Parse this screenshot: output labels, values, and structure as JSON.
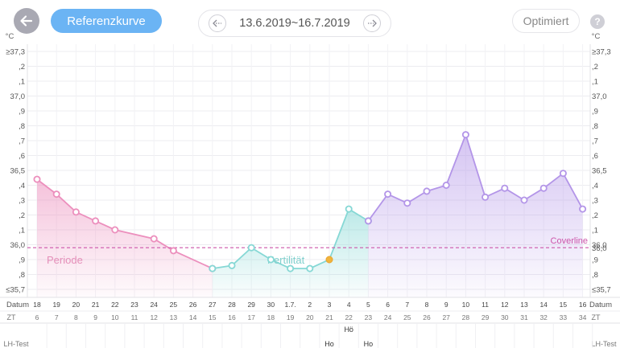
{
  "header": {
    "back_icon": "arrow-left-icon",
    "reference_button": "Referenzkurve",
    "date_range": "13.6.2019~16.7.2019",
    "prev_icon": "chevron-left-icon",
    "next_icon": "chevron-right-icon",
    "optimize_button": "Optimiert",
    "help_label": "?"
  },
  "chart_data": {
    "type": "line",
    "unit": "°C",
    "y_tick_labels": [
      "≥37,3",
      ",2",
      ",1",
      "37,0",
      ",9",
      ",8",
      ",7",
      ",6",
      "36,5",
      ",4",
      ",3",
      ",2",
      ",1",
      "36,0",
      ",9",
      ",8",
      "≤35,7"
    ],
    "ylim": [
      35.7,
      37.3
    ],
    "date_row_label": "Datum",
    "dates": [
      "18",
      "19",
      "20",
      "21",
      "22",
      "23",
      "24",
      "25",
      "26",
      "27",
      "28",
      "29",
      "30",
      "1.7.",
      "2",
      "3",
      "4",
      "5",
      "6",
      "7",
      "8",
      "9",
      "10",
      "11",
      "12",
      "13",
      "14",
      "15",
      "16"
    ],
    "cycle_row_label": "ZT",
    "cycle_days": [
      "6",
      "7",
      "8",
      "9",
      "10",
      "11",
      "12",
      "13",
      "14",
      "15",
      "16",
      "17",
      "18",
      "19",
      "20",
      "21",
      "22",
      "23",
      "24",
      "25",
      "26",
      "27",
      "28",
      "29",
      "30",
      "31",
      "32",
      "33",
      "34"
    ],
    "lh_row_label": "LH-Test",
    "lh_marks": [
      {
        "index": 15,
        "text": "Ho"
      },
      {
        "index": 16,
        "text": "Hö"
      },
      {
        "index": 17,
        "text": "Ho"
      }
    ],
    "temperatures": [
      36.44,
      36.34,
      36.22,
      36.16,
      36.1,
      null,
      36.04,
      35.96,
      null,
      35.84,
      35.86,
      35.98,
      35.9,
      35.84,
      35.84,
      35.9,
      36.24,
      36.16,
      36.34,
      36.28,
      36.36,
      36.4,
      36.74,
      36.32,
      36.38,
      36.3,
      36.38,
      36.48,
      36.24
    ],
    "ovulation_index": 15,
    "phases": [
      {
        "name": "Periode",
        "color": "#ec8fbd",
        "start": 0,
        "end": 9
      },
      {
        "name": "Fertilität",
        "color": "#86d8d5",
        "start": 9,
        "end": 17
      },
      {
        "name": "",
        "color": "#b395e8",
        "start": 17,
        "end": 28
      }
    ],
    "coverline": {
      "label": "Coverline",
      "value": 35.98,
      "right_label": "36,0"
    },
    "colors": {
      "periode": "#ec8fbd",
      "fertility": "#86d8d5",
      "luteal": "#b395e8",
      "ovulation": "#f0b43c",
      "coverline": "#cc55aa",
      "grid": "#ececf0",
      "text": "#555555"
    }
  }
}
